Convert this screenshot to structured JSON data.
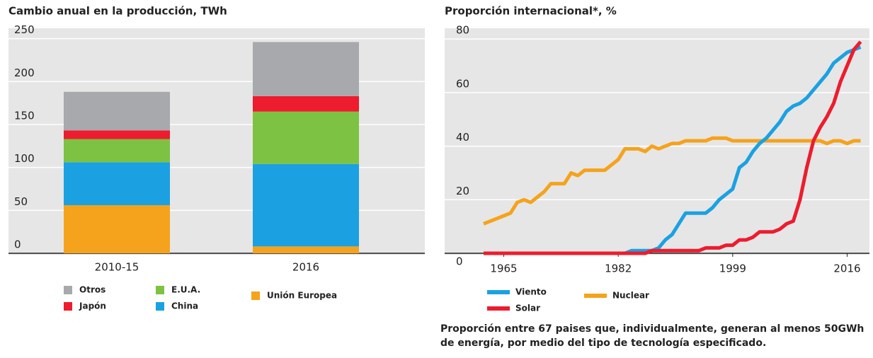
{
  "chart_data": [
    {
      "type": "bar",
      "stacked": true,
      "title": "Cambio anual en la producción, TWh",
      "categories": [
        "2010-15",
        "2016"
      ],
      "series": [
        {
          "name": "Unión Europea",
          "color": "#f5a31c",
          "values": [
            56,
            8
          ]
        },
        {
          "name": "China",
          "color": "#1ba1e2",
          "values": [
            50,
            96
          ]
        },
        {
          "name": "E.U.A.",
          "color": "#7dc242",
          "values": [
            27,
            61
          ]
        },
        {
          "name": "Japón",
          "color": "#ed1c2e",
          "values": [
            10,
            18
          ]
        },
        {
          "name": "Otros",
          "color": "#a7a9ac",
          "values": [
            45,
            63
          ]
        }
      ],
      "ylim": [
        0,
        262
      ],
      "yticks": [
        0,
        50,
        100,
        150,
        200,
        250
      ],
      "grid": true
    },
    {
      "type": "line",
      "title": "Proporción internacional*, %",
      "x": [
        1962,
        1963,
        1964,
        1965,
        1966,
        1967,
        1968,
        1969,
        1970,
        1971,
        1972,
        1973,
        1974,
        1975,
        1976,
        1977,
        1978,
        1979,
        1980,
        1981,
        1982,
        1983,
        1984,
        1985,
        1986,
        1987,
        1988,
        1989,
        1990,
        1991,
        1992,
        1993,
        1994,
        1995,
        1996,
        1997,
        1998,
        1999,
        2000,
        2001,
        2002,
        2003,
        2004,
        2005,
        2006,
        2007,
        2008,
        2009,
        2010,
        2011,
        2012,
        2013,
        2014,
        2015,
        2016,
        2017,
        2018
      ],
      "series": [
        {
          "name": "Nuclear",
          "color": "#f5a31c",
          "values": [
            11,
            12,
            13,
            14,
            15,
            19,
            20,
            19,
            21,
            23,
            26,
            26,
            26,
            30,
            29,
            31,
            31,
            31,
            31,
            33,
            35,
            39,
            39,
            39,
            38,
            40,
            39,
            40,
            41,
            41,
            42,
            42,
            42,
            42,
            43,
            43,
            43,
            42,
            42,
            42,
            42,
            42,
            42,
            42,
            42,
            42,
            42,
            42,
            42,
            42,
            42,
            41,
            42,
            42,
            41,
            42,
            42
          ]
        },
        {
          "name": "Viento",
          "color": "#1ba1e2",
          "values": [
            0,
            0,
            0,
            0,
            0,
            0,
            0,
            0,
            0,
            0,
            0,
            0,
            0,
            0,
            0,
            0,
            0,
            0,
            0,
            0,
            0,
            0,
            1,
            1,
            1,
            1,
            2,
            5,
            7,
            11,
            15,
            15,
            15,
            15,
            17,
            20,
            22,
            24,
            32,
            34,
            38,
            41,
            43,
            46,
            49,
            53,
            55,
            56,
            58,
            61,
            64,
            67,
            71,
            73,
            75,
            76,
            77
          ]
        },
        {
          "name": "Solar",
          "color": "#ed1c2e",
          "values": [
            0,
            0,
            0,
            0,
            0,
            0,
            0,
            0,
            0,
            0,
            0,
            0,
            0,
            0,
            0,
            0,
            0,
            0,
            0,
            0,
            0,
            0,
            0,
            0,
            0,
            1,
            1,
            1,
            1,
            1,
            1,
            1,
            1,
            2,
            2,
            2,
            3,
            3,
            5,
            5,
            6,
            8,
            8,
            8,
            9,
            11,
            12,
            20,
            32,
            42,
            47,
            51,
            56,
            64,
            70,
            76,
            79
          ]
        }
      ],
      "xlim": [
        1962,
        2019
      ],
      "xticks": [
        1965,
        1982,
        1999,
        2016
      ],
      "ylim": [
        0,
        84
      ],
      "yticks": [
        0,
        20,
        40,
        60,
        80
      ],
      "grid": true,
      "note": "Proporción entre 67 paises que, individualmente, generan al menos 50GWh de energía, por medio del tipo de tecnología especificado."
    }
  ]
}
